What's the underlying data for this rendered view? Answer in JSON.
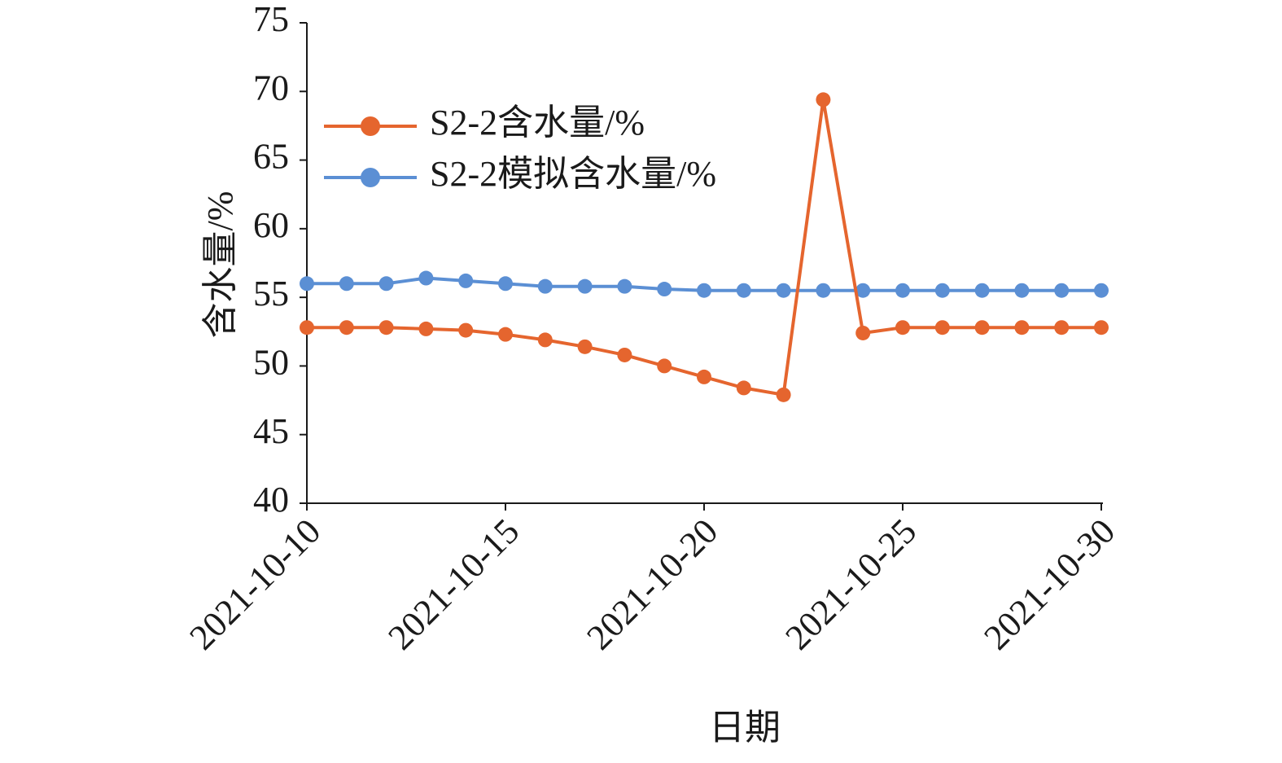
{
  "chart_data": {
    "type": "line",
    "title": "",
    "xlabel": "日期",
    "ylabel": "含水量/%",
    "ylim": [
      40,
      75
    ],
    "yticks": [
      "40",
      "45",
      "50",
      "55",
      "60",
      "65",
      "70",
      "75"
    ],
    "xlim": [
      "2021-10-10",
      "2021-10-30"
    ],
    "xticks": [
      "2021-10-10",
      "2021-10-15",
      "2021-10-20",
      "2021-10-25",
      "2021-10-30"
    ],
    "grid": false,
    "legend_position": "top-left",
    "x": [
      "2021-10-10",
      "2021-10-11",
      "2021-10-12",
      "2021-10-13",
      "2021-10-14",
      "2021-10-15",
      "2021-10-16",
      "2021-10-17",
      "2021-10-18",
      "2021-10-19",
      "2021-10-20",
      "2021-10-21",
      "2021-10-22",
      "2021-10-23",
      "2021-10-24",
      "2021-10-25",
      "2021-10-26",
      "2021-10-27",
      "2021-10-28",
      "2021-10-29",
      "2021-10-30"
    ],
    "series": [
      {
        "name": "S2-2含水量/%",
        "color": "#e5652e",
        "values": [
          52.8,
          52.8,
          52.8,
          52.7,
          52.6,
          52.3,
          51.9,
          51.4,
          50.8,
          50.0,
          49.2,
          48.4,
          47.9,
          69.4,
          52.4,
          52.8,
          52.8,
          52.8,
          52.8,
          52.8,
          52.8
        ]
      },
      {
        "name": "S2-2模拟含水量/%",
        "color": "#5b8fd4",
        "values": [
          56.0,
          56.0,
          56.0,
          56.4,
          56.2,
          56.0,
          55.8,
          55.8,
          55.8,
          55.6,
          55.5,
          55.5,
          55.5,
          55.5,
          55.5,
          55.5,
          55.5,
          55.5,
          55.5,
          55.5,
          55.5
        ]
      }
    ]
  }
}
